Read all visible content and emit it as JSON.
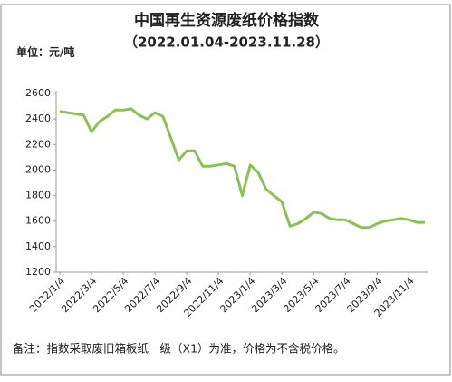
{
  "chart_data": {
    "type": "line",
    "title": "中国再生资源废纸价格指数",
    "subtitle": "（2022.01.04-2023.11.28）",
    "unit_label": "单位：元/吨",
    "note": "备注：指数采取废旧箱板纸一级（X1）为准，价格为不含税价格。",
    "categories": [
      "2022/1/4",
      null,
      null,
      null,
      "2022/3/4",
      null,
      null,
      null,
      "2022/5/4",
      null,
      null,
      null,
      "2022/7/4",
      null,
      null,
      null,
      "2022/9/4",
      null,
      null,
      null,
      "2022/11/4",
      null,
      null,
      null,
      "2023/1/4",
      null,
      null,
      null,
      "2023/3/4",
      null,
      null,
      null,
      "2023/5/4",
      null,
      null,
      null,
      "2023/7/4",
      null,
      null,
      null,
      "2023/9/4",
      null,
      null,
      null,
      "2023/11/4",
      null,
      null
    ],
    "values": [
      2460,
      2450,
      2440,
      2430,
      2300,
      2380,
      2420,
      2470,
      2470,
      2480,
      2430,
      2400,
      2450,
      2420,
      2250,
      2080,
      2150,
      2150,
      2030,
      2030,
      2040,
      2050,
      2030,
      1800,
      2040,
      1980,
      1850,
      1800,
      1750,
      1560,
      1580,
      1620,
      1670,
      1660,
      1620,
      1610,
      1610,
      1580,
      1550,
      1550,
      1580,
      1600,
      1610,
      1620,
      1610,
      1590,
      1590
    ],
    "color": "#8cc152",
    "ylim": [
      1200,
      2600
    ],
    "yticks": [
      1200,
      1400,
      1600,
      1800,
      2000,
      2200,
      2400,
      2600
    ],
    "grid": false
  }
}
